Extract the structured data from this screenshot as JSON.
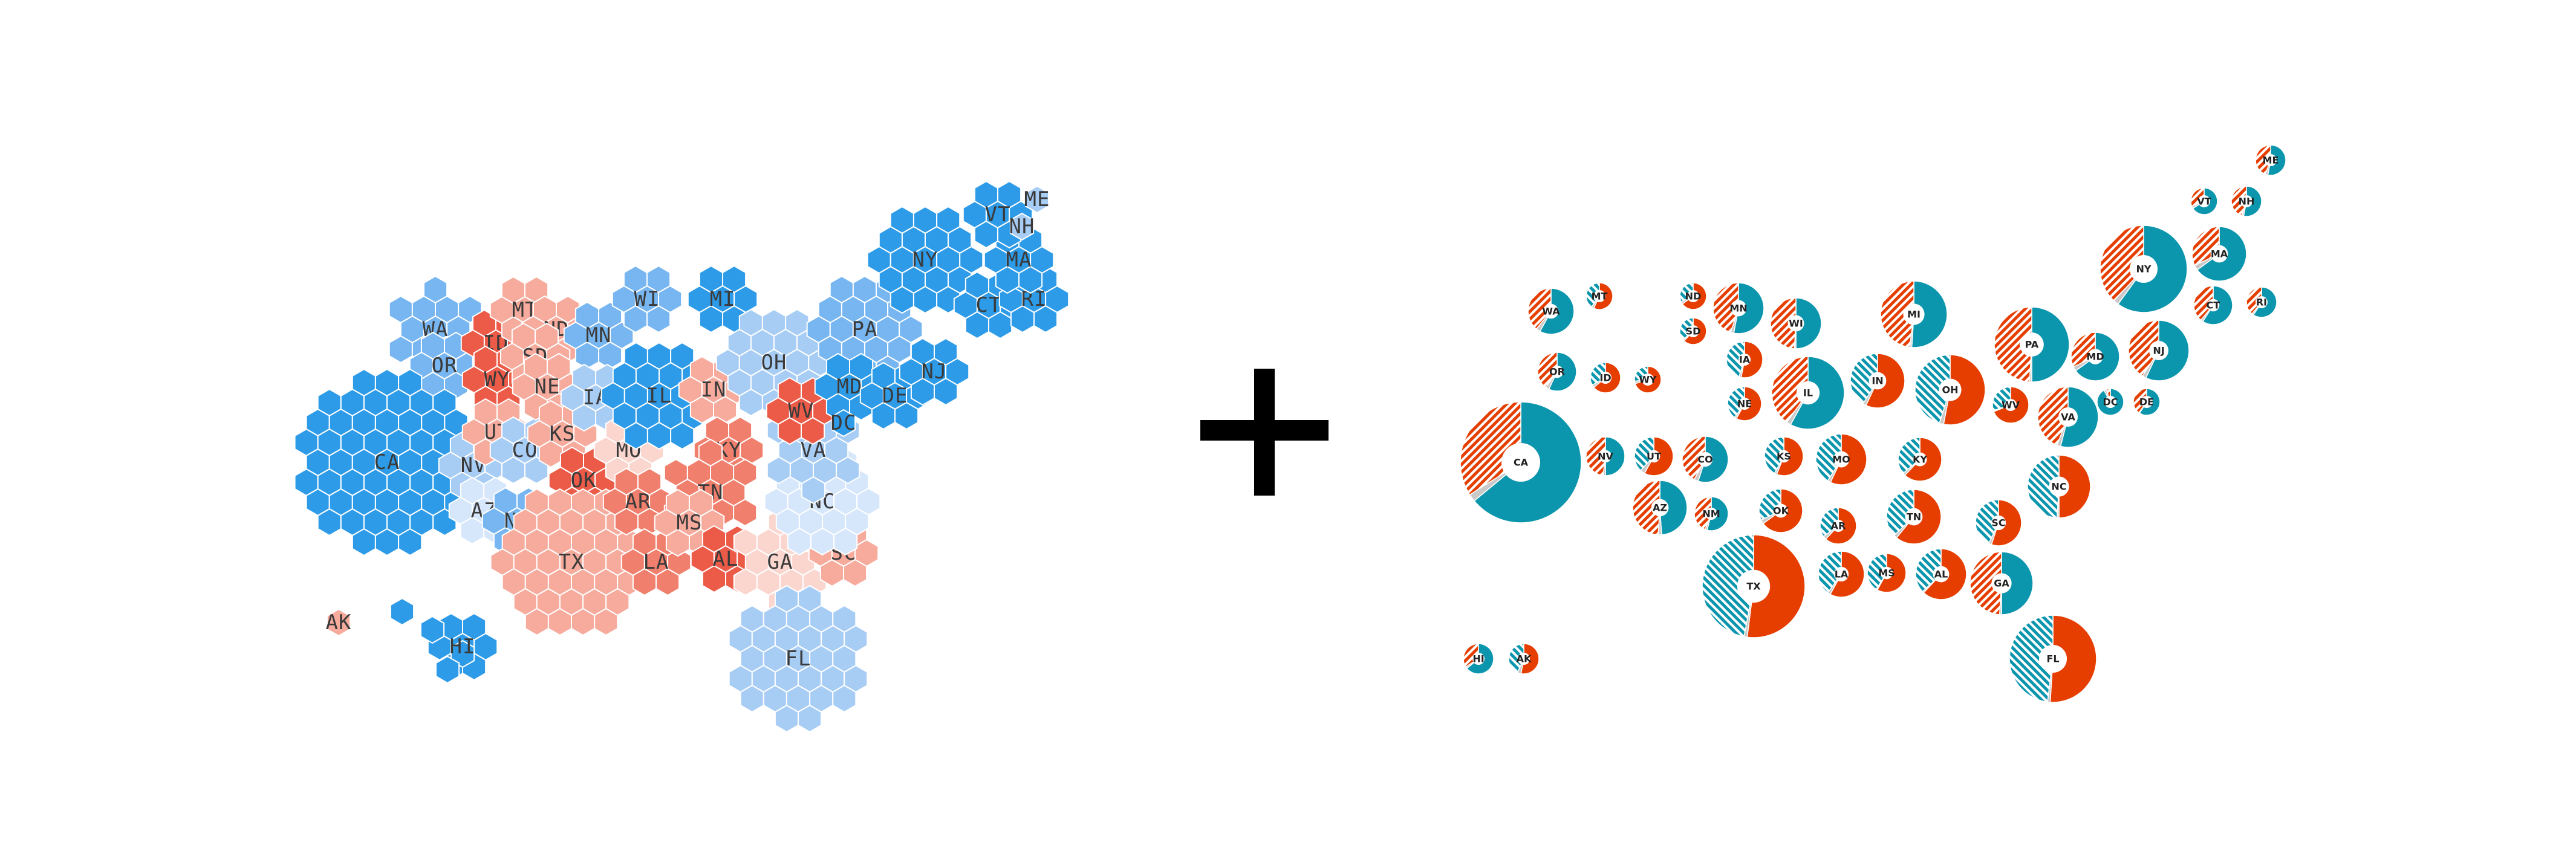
{
  "colors": {
    "dem_strong": "#2e9be8",
    "dem_mid": "#77b6f0",
    "dem_light": "#a8cdf5",
    "dem_pale": "#d6e7fb",
    "rep_pale": "#fbd6cf",
    "rep_light": "#f6ab9d",
    "rep_mid": "#f0806d",
    "rep_strong": "#ec5b48",
    "pie_dem": "#0b96ad",
    "pie_rep": "#e63e00",
    "pie_other": "#c9c9c9"
  },
  "operator_icon": "plus-icon",
  "hex_map": {
    "states": [
      {
        "abbr": "WA",
        "lean": "dem_mid"
      },
      {
        "abbr": "OR",
        "lean": "dem_mid"
      },
      {
        "abbr": "CA",
        "lean": "dem_strong"
      },
      {
        "abbr": "NV",
        "lean": "dem_light"
      },
      {
        "abbr": "AZ",
        "lean": "dem_pale"
      },
      {
        "abbr": "ID",
        "lean": "rep_strong"
      },
      {
        "abbr": "MT",
        "lean": "rep_light"
      },
      {
        "abbr": "WY",
        "lean": "rep_strong"
      },
      {
        "abbr": "UT",
        "lean": "rep_light"
      },
      {
        "abbr": "CO",
        "lean": "dem_light"
      },
      {
        "abbr": "NM",
        "lean": "dem_mid"
      },
      {
        "abbr": "ND",
        "lean": "rep_light"
      },
      {
        "abbr": "SD",
        "lean": "rep_light"
      },
      {
        "abbr": "NE",
        "lean": "rep_light"
      },
      {
        "abbr": "KS",
        "lean": "rep_light"
      },
      {
        "abbr": "OK",
        "lean": "rep_strong"
      },
      {
        "abbr": "TX",
        "lean": "rep_light"
      },
      {
        "abbr": "MN",
        "lean": "dem_mid"
      },
      {
        "abbr": "IA",
        "lean": "dem_light"
      },
      {
        "abbr": "MO",
        "lean": "rep_pale"
      },
      {
        "abbr": "AR",
        "lean": "rep_mid"
      },
      {
        "abbr": "LA",
        "lean": "rep_mid"
      },
      {
        "abbr": "WI",
        "lean": "dem_mid"
      },
      {
        "abbr": "IL",
        "lean": "dem_strong"
      },
      {
        "abbr": "MI",
        "lean": "dem_strong"
      },
      {
        "abbr": "IN",
        "lean": "rep_light"
      },
      {
        "abbr": "OH",
        "lean": "dem_light"
      },
      {
        "abbr": "KY",
        "lean": "rep_mid"
      },
      {
        "abbr": "TN",
        "lean": "rep_mid"
      },
      {
        "abbr": "MS",
        "lean": "rep_light"
      },
      {
        "abbr": "AL",
        "lean": "rep_strong"
      },
      {
        "abbr": "GA",
        "lean": "rep_pale"
      },
      {
        "abbr": "FL",
        "lean": "dem_light"
      },
      {
        "abbr": "SC",
        "lean": "rep_light"
      },
      {
        "abbr": "NC",
        "lean": "dem_pale"
      },
      {
        "abbr": "VA",
        "lean": "dem_light"
      },
      {
        "abbr": "WV",
        "lean": "rep_strong"
      },
      {
        "abbr": "PA",
        "lean": "dem_mid"
      },
      {
        "abbr": "MD",
        "lean": "dem_strong"
      },
      {
        "abbr": "DE",
        "lean": "dem_strong"
      },
      {
        "abbr": "DC",
        "lean": "dem_strong"
      },
      {
        "abbr": "NJ",
        "lean": "dem_strong"
      },
      {
        "abbr": "NY",
        "lean": "dem_strong"
      },
      {
        "abbr": "CT",
        "lean": "dem_strong"
      },
      {
        "abbr": "RI",
        "lean": "dem_strong"
      },
      {
        "abbr": "MA",
        "lean": "dem_strong"
      },
      {
        "abbr": "VT",
        "lean": "dem_strong"
      },
      {
        "abbr": "NH",
        "lean": "dem_light"
      },
      {
        "abbr": "ME",
        "lean": "dem_light"
      },
      {
        "abbr": "AK",
        "lean": "rep_light"
      },
      {
        "abbr": "HI",
        "lean": "dem_strong"
      }
    ]
  },
  "pie_map": {
    "states": [
      {
        "abbr": "WA",
        "dem": 0.58,
        "rep": 0.39
      },
      {
        "abbr": "MT",
        "dem": 0.4,
        "rep": 0.57
      },
      {
        "abbr": "OR",
        "dem": 0.57,
        "rep": 0.4
      },
      {
        "abbr": "ID",
        "dem": 0.33,
        "rep": 0.64
      },
      {
        "abbr": "WY",
        "dem": 0.27,
        "rep": 0.7
      },
      {
        "abbr": "CA",
        "dem": 0.64,
        "rep": 0.34
      },
      {
        "abbr": "NV",
        "dem": 0.5,
        "rep": 0.48
      },
      {
        "abbr": "UT",
        "dem": 0.38,
        "rep": 0.58
      },
      {
        "abbr": "CO",
        "dem": 0.55,
        "rep": 0.42
      },
      {
        "abbr": "AZ",
        "dem": 0.49,
        "rep": 0.49
      },
      {
        "abbr": "NM",
        "dem": 0.54,
        "rep": 0.44
      },
      {
        "abbr": "ND",
        "dem": 0.32,
        "rep": 0.65
      },
      {
        "abbr": "SD",
        "dem": 0.36,
        "rep": 0.62
      },
      {
        "abbr": "MN",
        "dem": 0.53,
        "rep": 0.45
      },
      {
        "abbr": "IA",
        "dem": 0.45,
        "rep": 0.53
      },
      {
        "abbr": "NE",
        "dem": 0.4,
        "rep": 0.58
      },
      {
        "abbr": "KS",
        "dem": 0.42,
        "rep": 0.56
      },
      {
        "abbr": "OK",
        "dem": 0.32,
        "rep": 0.65
      },
      {
        "abbr": "TX",
        "dem": 0.47,
        "rep": 0.52
      },
      {
        "abbr": "WI",
        "dem": 0.5,
        "rep": 0.49
      },
      {
        "abbr": "IL",
        "dem": 0.58,
        "rep": 0.4
      },
      {
        "abbr": "MO",
        "dem": 0.41,
        "rep": 0.57
      },
      {
        "abbr": "AR",
        "dem": 0.35,
        "rep": 0.62
      },
      {
        "abbr": "LA",
        "dem": 0.4,
        "rep": 0.58
      },
      {
        "abbr": "MI",
        "dem": 0.51,
        "rep": 0.48
      },
      {
        "abbr": "IN",
        "dem": 0.41,
        "rep": 0.57
      },
      {
        "abbr": "KY",
        "dem": 0.36,
        "rep": 0.62
      },
      {
        "abbr": "TN",
        "dem": 0.37,
        "rep": 0.61
      },
      {
        "abbr": "MS",
        "dem": 0.41,
        "rep": 0.58
      },
      {
        "abbr": "AL",
        "dem": 0.37,
        "rep": 0.62
      },
      {
        "abbr": "OH",
        "dem": 0.45,
        "rep": 0.53
      },
      {
        "abbr": "WV",
        "dem": 0.3,
        "rep": 0.69
      },
      {
        "abbr": "VA",
        "dem": 0.54,
        "rep": 0.44
      },
      {
        "abbr": "NC",
        "dem": 0.49,
        "rep": 0.5
      },
      {
        "abbr": "SC",
        "dem": 0.43,
        "rep": 0.55
      },
      {
        "abbr": "GA",
        "dem": 0.5,
        "rep": 0.49
      },
      {
        "abbr": "FL",
        "dem": 0.48,
        "rep": 0.51
      },
      {
        "abbr": "PA",
        "dem": 0.5,
        "rep": 0.49
      },
      {
        "abbr": "MD",
        "dem": 0.65,
        "rep": 0.32
      },
      {
        "abbr": "DC",
        "dem": 0.92,
        "rep": 0.05
      },
      {
        "abbr": "DE",
        "dem": 0.59,
        "rep": 0.4
      },
      {
        "abbr": "NJ",
        "dem": 0.57,
        "rep": 0.41
      },
      {
        "abbr": "NY",
        "dem": 0.6,
        "rep": 0.38
      },
      {
        "abbr": "CT",
        "dem": 0.59,
        "rep": 0.39
      },
      {
        "abbr": "RI",
        "dem": 0.59,
        "rep": 0.39
      },
      {
        "abbr": "MA",
        "dem": 0.65,
        "rep": 0.32
      },
      {
        "abbr": "VT",
        "dem": 0.66,
        "rep": 0.31
      },
      {
        "abbr": "NH",
        "dem": 0.53,
        "rep": 0.45
      },
      {
        "abbr": "ME",
        "dem": 0.53,
        "rep": 0.44
      },
      {
        "abbr": "HI",
        "dem": 0.64,
        "rep": 0.34
      },
      {
        "abbr": "AK",
        "dem": 0.43,
        "rep": 0.53
      }
    ]
  }
}
